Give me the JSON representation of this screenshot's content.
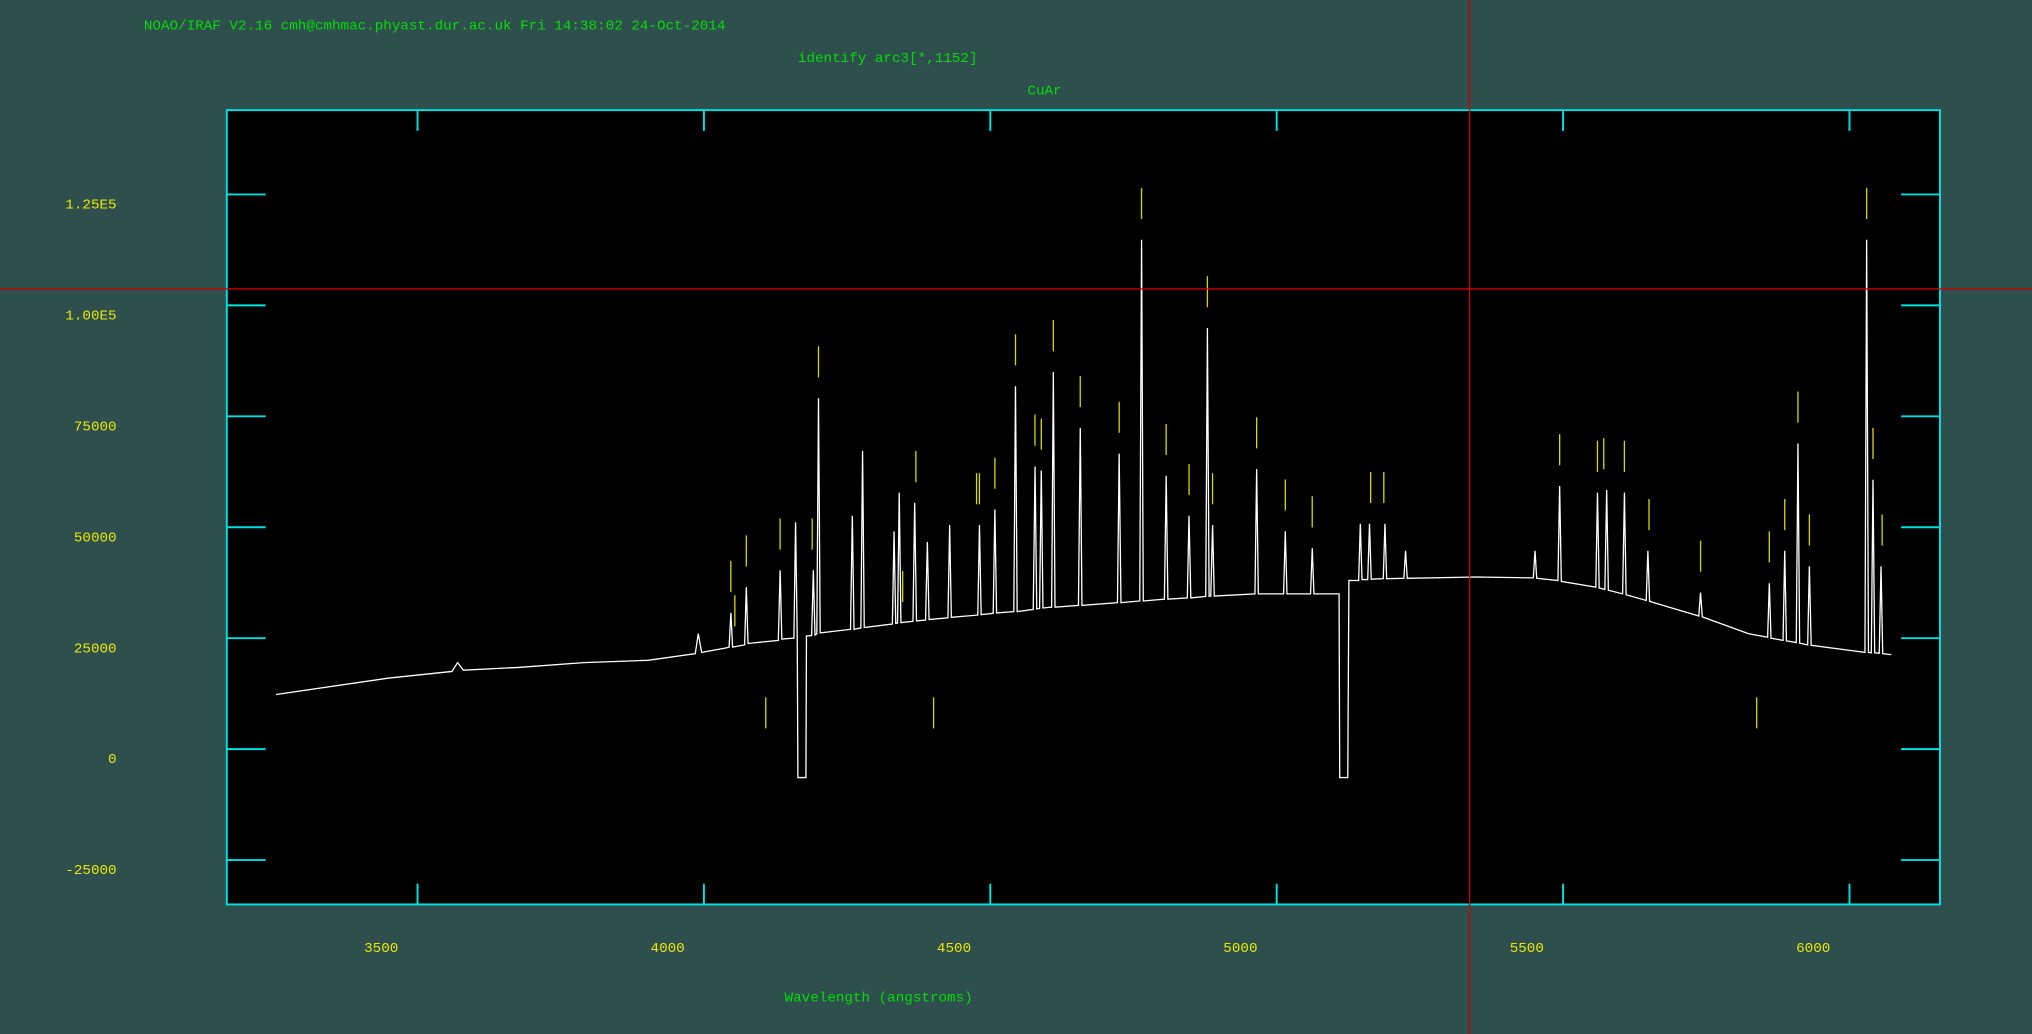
{
  "chart_data": {
    "type": "line",
    "header": "NOAO/IRAF V2.16 cmh@cmhmac.phyast.dur.ac.uk Fri 14:38:02 24-Oct-2014",
    "title": "identify arc3[*,1152]",
    "subtitle": "CuAr",
    "x_label": "Wavelength (angstroms)",
    "color": "#ffffff",
    "frame_color": "#00e0e0",
    "feature_color": "#d8d800",
    "xlim": [
      3167,
      6158
    ],
    "ylim": [
      -35000,
      144000
    ],
    "xticks": [
      3500,
      4000,
      4500,
      5000,
      5500,
      6000
    ],
    "yticks": [
      -25000,
      0,
      25000,
      50000,
      75000,
      {
        "value": 100000,
        "label": "1.00E5"
      },
      {
        "value": 125000,
        "label": "1.25E5"
      }
    ],
    "x": [
      3253,
      3450,
      3560,
      3570,
      3580,
      3676,
      3790,
      3902,
      3985,
      3990,
      3996,
      4038,
      4044,
      4047,
      4050,
      4071,
      4074,
      4077,
      4130,
      4133,
      4136,
      4157,
      4160,
      4163,
      4164,
      4178,
      4179,
      4188,
      4191,
      4194,
      4197,
      4200,
      4203,
      4256,
      4259,
      4262,
      4274,
      4277,
      4280,
      4329,
      4332,
      4335,
      4338,
      4341,
      4344,
      4365,
      4368,
      4371,
      4387,
      4390,
      4393,
      4426,
      4429,
      4432,
      4478,
      4481,
      4484,
      4505,
      4508,
      4511,
      4541,
      4544,
      4547,
      4575,
      4578,
      4581,
      4586,
      4589,
      4592,
      4607,
      4610,
      4613,
      4654,
      4657,
      4660,
      4722,
      4725,
      4728,
      4761,
      4764,
      4767,
      4804,
      4807,
      4810,
      4844,
      4847,
      4850,
      4876,
      4879,
      4882,
      4885,
      4888,
      4891,
      4962,
      4965,
      4968,
      5012,
      5015,
      5018,
      5059,
      5062,
      5065,
      5109,
      5110,
      5124,
      5126,
      5143,
      5146,
      5149,
      5159,
      5162,
      5165,
      5186,
      5189,
      5192,
      5222,
      5225,
      5228,
      5349,
      5448,
      5451,
      5454,
      5491,
      5494,
      5497,
      5557,
      5560,
      5563,
      5573,
      5576,
      5579,
      5604,
      5607,
      5610,
      5645,
      5648,
      5651,
      5737,
      5740,
      5743,
      5824,
      5857,
      5860,
      5863,
      5884,
      5887,
      5890,
      5907,
      5910,
      5913,
      5927,
      5930,
      5933,
      6027,
      6030,
      6033,
      6038,
      6041,
      6044,
      6052,
      6055,
      6058,
      6073
    ],
    "values": [
      12300,
      16000,
      17500,
      19500,
      17800,
      18400,
      19500,
      20000,
      21500,
      26000,
      21800,
      22800,
      23000,
      30700,
      23000,
      23500,
      36500,
      23800,
      24500,
      40300,
      24800,
      25000,
      51100,
      25000,
      -6400,
      -6400,
      25500,
      25600,
      40300,
      25700,
      26000,
      79100,
      26200,
      27000,
      52600,
      27000,
      27300,
      67200,
      27400,
      28200,
      49100,
      28300,
      28400,
      57800,
      28500,
      28800,
      55500,
      28900,
      29100,
      46700,
      29200,
      29600,
      50500,
      29700,
      30200,
      50500,
      30300,
      30600,
      54000,
      30700,
      31000,
      81800,
      31000,
      31500,
      63700,
      31600,
      31700,
      62800,
      31800,
      32000,
      85000,
      32000,
      32400,
      72400,
      32400,
      33000,
      66600,
      33000,
      33400,
      114800,
      33400,
      33800,
      61600,
      33800,
      34100,
      52600,
      34100,
      34400,
      94900,
      34400,
      34500,
      50500,
      34500,
      35000,
      63100,
      35000,
      35000,
      49100,
      35000,
      35000,
      45300,
      35000,
      35000,
      -6400,
      -6400,
      38000,
      38000,
      50800,
      38200,
      38200,
      50800,
      38300,
      38400,
      50800,
      38400,
      38500,
      44700,
      38500,
      38800,
      38600,
      44700,
      38500,
      38000,
      59300,
      37800,
      36500,
      57800,
      36300,
      36000,
      58400,
      35800,
      35000,
      57800,
      34800,
      33500,
      44700,
      33300,
      30000,
      35300,
      29800,
      26000,
      25200,
      37400,
      25000,
      24500,
      44700,
      24400,
      24000,
      68900,
      23900,
      23500,
      41200,
      23400,
      21800,
      114800,
      21800,
      21700,
      60700,
      21700,
      21600,
      41200,
      21500,
      21300
    ],
    "features": [
      4047,
      4054,
      4074,
      4108,
      4133,
      4189,
      4200,
      4347,
      4370,
      4401,
      4476,
      4481,
      4508,
      4544,
      4578,
      4589,
      4610,
      4657,
      4725,
      4764,
      4807,
      4847,
      4879,
      4888,
      4965,
      5015,
      5062,
      5164,
      5187,
      5494,
      5560,
      5571,
      5607,
      5650,
      5740,
      5838,
      5860,
      5887,
      5910,
      5930,
      6030,
      6041,
      6057
    ]
  }
}
